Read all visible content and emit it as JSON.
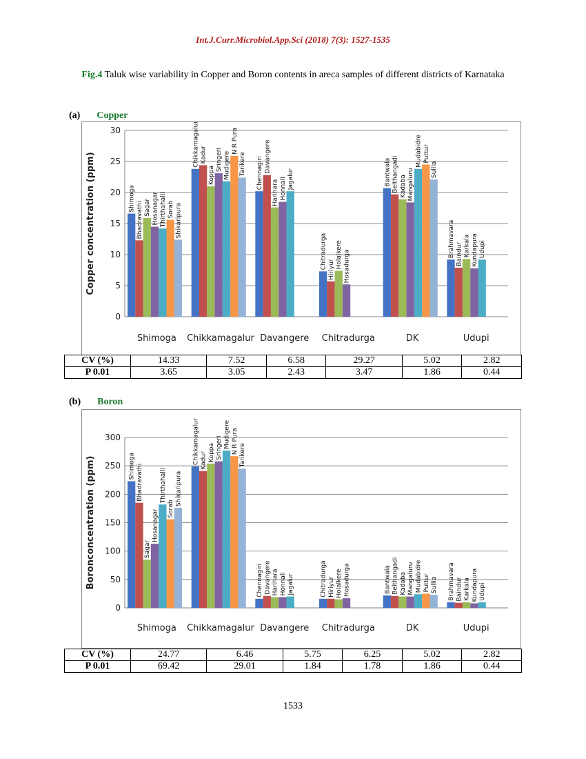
{
  "header": "Int.J.Curr.Microbiol.App.Sci (2018) 7(3): 1527-1535",
  "caption": {
    "label": "Fig.4",
    "text": "Taluk wise variability in Copper and Boron contents in areca samples of different districts of Karnataka"
  },
  "page_number": "1533",
  "chart_data": [
    {
      "type": "bar",
      "panel": "(a)",
      "panel_title": "Copper",
      "ylabel": "Copper concentration (ppm)",
      "ylim": [
        0,
        30
      ],
      "yticks": [
        0,
        5,
        10,
        15,
        20,
        25,
        30
      ],
      "grid": true,
      "categories": [
        "Shimoga",
        "Chikkamagalur",
        "Davangere",
        "Chitradurga",
        "DK",
        "Udupi"
      ],
      "groups": [
        {
          "district": "Shimoga",
          "bars": [
            {
              "label": "Shimoga",
              "value": 16.6
            },
            {
              "label": "Bhadravathi",
              "value": 12.3
            },
            {
              "label": "Sagar",
              "value": 15.9
            },
            {
              "label": "Hosanagar",
              "value": 14.5
            },
            {
              "label": "Thirthahalli",
              "value": 14.2
            },
            {
              "label": "Sorab",
              "value": 15.6
            },
            {
              "label": "Shikaripura",
              "value": 12.4
            }
          ]
        },
        {
          "district": "Chikkamagalur",
          "bars": [
            {
              "label": "Chikkamagalur",
              "value": 23.8
            },
            {
              "label": "Kadur",
              "value": 24.4
            },
            {
              "label": "Koppa",
              "value": 21.0
            },
            {
              "label": "Sringeri",
              "value": 23.1
            },
            {
              "label": "Mudigere",
              "value": 21.8
            },
            {
              "label": "N R Pura",
              "value": 25.9
            },
            {
              "label": "Tarikere",
              "value": 22.4
            }
          ]
        },
        {
          "district": "Davangere",
          "bars": [
            {
              "label": "Chennagiri",
              "value": 20.2
            },
            {
              "label": "Davangere",
              "value": 22.8
            },
            {
              "label": "Harihara",
              "value": 17.6
            },
            {
              "label": "Honnali",
              "value": 18.5
            },
            {
              "label": "Jagalur",
              "value": 20.2
            }
          ]
        },
        {
          "district": "Chitradurga",
          "bars": [
            {
              "label": "Chitradurga",
              "value": 7.3
            },
            {
              "label": "Hiriyur",
              "value": 5.7
            },
            {
              "label": "Holalkere",
              "value": 7.4
            },
            {
              "label": "Hosadurga",
              "value": 5.2
            }
          ]
        },
        {
          "district": "DK",
          "bars": [
            {
              "label": "Bantwala",
              "value": 20.7
            },
            {
              "label": "Belthangadi",
              "value": 19.7
            },
            {
              "label": "Kadaba",
              "value": 18.9
            },
            {
              "label": "Mangaluru",
              "value": 18.4
            },
            {
              "label": "Mudabidre",
              "value": 23.8
            },
            {
              "label": "Puttur",
              "value": 24.5
            },
            {
              "label": "Sullia",
              "value": 22.1
            }
          ]
        },
        {
          "district": "Udupi",
          "bars": [
            {
              "label": "Brahmavara",
              "value": 9.2
            },
            {
              "label": "Baindur",
              "value": 7.9
            },
            {
              "label": "Karkala",
              "value": 9.3
            },
            {
              "label": "Kundapura",
              "value": 7.8
            },
            {
              "label": "Udupi",
              "value": 9.2
            }
          ]
        }
      ],
      "stats": {
        "cv_label": "CV (%)",
        "cv": [
          "14.33",
          "7.52",
          "6.58",
          "29.27",
          "5.02",
          "2.82"
        ],
        "p_label": "P 0.01",
        "p": [
          "3.65",
          "3.05",
          "2.43",
          "3.47",
          "1.86",
          "0.44"
        ]
      }
    },
    {
      "type": "bar",
      "panel": "(b)",
      "panel_title": "Boron",
      "ylabel": "Boronconcentration (ppm)",
      "ylim": [
        0,
        300
      ],
      "yticks": [
        0,
        50,
        100,
        150,
        200,
        250,
        300
      ],
      "grid": true,
      "categories": [
        "Shimoga",
        "Chikkamagalur",
        "Davangere",
        "Chitradurga",
        "DK",
        "Udupi"
      ],
      "groups": [
        {
          "district": "Shimoga",
          "bars": [
            {
              "label": "Shimoga",
              "value": 223
            },
            {
              "label": "Bhadravathi",
              "value": 185
            },
            {
              "label": "Sagar",
              "value": 85
            },
            {
              "label": "Hosanagar",
              "value": 113
            },
            {
              "label": "Thirthahalli",
              "value": 182
            },
            {
              "label": "Sorab",
              "value": 156
            },
            {
              "label": "Shikaripura",
              "value": 176
            }
          ]
        },
        {
          "district": "Chikkamagalur",
          "bars": [
            {
              "label": "Chikkamagalur",
              "value": 249
            },
            {
              "label": "Kadur",
              "value": 241
            },
            {
              "label": "Koppa",
              "value": 254
            },
            {
              "label": "Sringeri",
              "value": 258
            },
            {
              "label": "Mudigere",
              "value": 277
            },
            {
              "label": "N R Pura",
              "value": 267
            },
            {
              "label": "Tarikere",
              "value": 245
            }
          ]
        },
        {
          "district": "Davangere",
          "bars": [
            {
              "label": "Chennagiri",
              "value": 16
            },
            {
              "label": "Davangere",
              "value": 21
            },
            {
              "label": "Harihara",
              "value": 19
            },
            {
              "label": "Honnali",
              "value": 19
            },
            {
              "label": "Jagalur",
              "value": 20
            }
          ]
        },
        {
          "district": "Chitradurga",
          "bars": [
            {
              "label": "Chitradurga",
              "value": 16
            },
            {
              "label": "Hiriyur",
              "value": 16
            },
            {
              "label": "Holalkere",
              "value": 15
            },
            {
              "label": "Hosadurga",
              "value": 17
            }
          ]
        },
        {
          "district": "DK",
          "bars": [
            {
              "label": "Bantwala",
              "value": 22
            },
            {
              "label": "Belthangadi",
              "value": 21
            },
            {
              "label": "Kadaba",
              "value": 20
            },
            {
              "label": "Mangaluru",
              "value": 20
            },
            {
              "label": "Mudabidre",
              "value": 24
            },
            {
              "label": "Puttur",
              "value": 25
            },
            {
              "label": "Sullia",
              "value": 23
            }
          ]
        },
        {
          "district": "Udupi",
          "bars": [
            {
              "label": "Brahmavara",
              "value": 10
            },
            {
              "label": "Baindur",
              "value": 9
            },
            {
              "label": "Karkala",
              "value": 10
            },
            {
              "label": "Kundapura",
              "value": 8
            },
            {
              "label": "Udupi",
              "value": 10
            }
          ]
        }
      ],
      "stats": {
        "cv_label": "CV (%)",
        "cv": [
          "24.77",
          "6.46",
          "5.75",
          "6.25",
          "5.02",
          "2.82"
        ],
        "p_label": "P 0.01",
        "p": [
          "69.42",
          "29.01",
          "1.84",
          "1.78",
          "1.86",
          "0.44"
        ]
      }
    }
  ],
  "colors": {
    "bar_palette": [
      "#4472c4",
      "#c0504d",
      "#9bbb59",
      "#8064a2",
      "#4bacc6",
      "#f79646",
      "#95b3d7"
    ],
    "caption_green": "#1a7a2e",
    "header_red": "#b01c1c"
  }
}
